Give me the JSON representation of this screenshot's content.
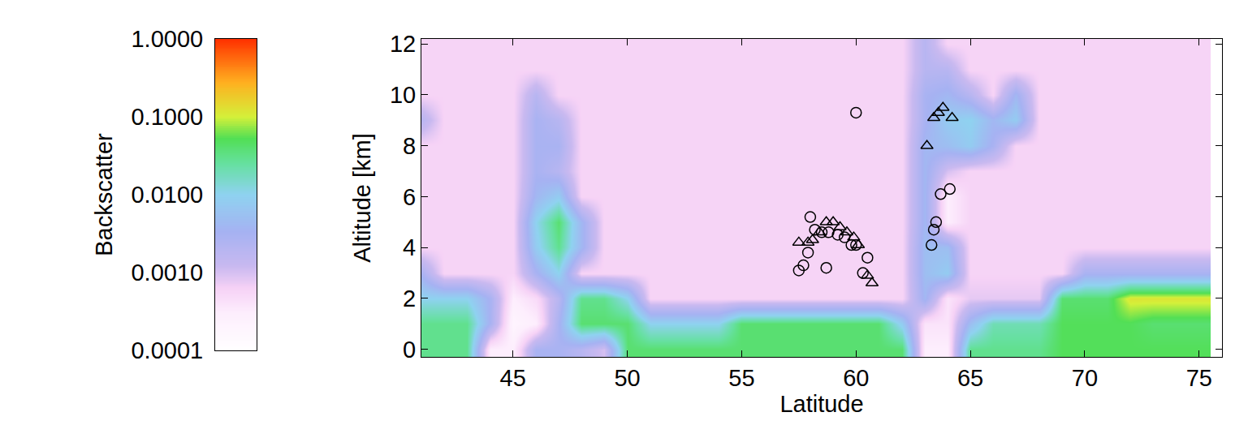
{
  "chart_data": {
    "type": "heatmap",
    "x_label": "Latitude",
    "y_label": "Altitude [km]",
    "xlim": [
      41,
      76
    ],
    "xticks": [
      45,
      50,
      55,
      60,
      65,
      70,
      75
    ],
    "ylim": [
      -0.3,
      12.2
    ],
    "yticks": [
      0,
      2,
      4,
      6,
      8,
      10,
      12
    ],
    "grid": false,
    "x": [
      41,
      42,
      43,
      44,
      45,
      46,
      47,
      48,
      49,
      50,
      51,
      52,
      53,
      54,
      55,
      56,
      57,
      58,
      59,
      60,
      61,
      62,
      63,
      64,
      65,
      66,
      67,
      68,
      69,
      70,
      71,
      72,
      73,
      74,
      75
    ],
    "y": [
      0,
      1,
      2,
      3,
      4,
      5,
      6,
      7,
      8,
      9,
      10,
      11,
      12
    ],
    "cells": [
      [
        0.03,
        0.03,
        0.03,
        0.0003,
        0.0003,
        0.003,
        0.003,
        0.002,
        0.001,
        0.04,
        0.04,
        0.04,
        0.04,
        0.04,
        0.04,
        0.04,
        0.04,
        0.04,
        0.04,
        0.04,
        0.04,
        0.04,
        0.0003,
        0.0003,
        0.03,
        0.03,
        0.03,
        0.03,
        0.05,
        0.05,
        0.05,
        0.05,
        0.05,
        0.05,
        0.05
      ],
      [
        0.03,
        0.03,
        0.03,
        0.003,
        0.0002,
        0.0003,
        0.003,
        0.04,
        0.04,
        0.04,
        0.01,
        0.01,
        0.01,
        0.01,
        0.04,
        0.04,
        0.04,
        0.04,
        0.04,
        0.04,
        0.04,
        0.008,
        0.0004,
        0.0004,
        0.005,
        0.02,
        0.02,
        0.02,
        0.05,
        0.05,
        0.05,
        0.05,
        0.04,
        0.04,
        0.04
      ],
      [
        0.01,
        0.01,
        0.01,
        0.003,
        0.0003,
        0.0005,
        0.002,
        0.03,
        0.03,
        0.01,
        0.0006,
        0.0006,
        0.0006,
        0.0006,
        0.0006,
        0.0006,
        0.0006,
        0.0006,
        0.0006,
        0.0006,
        0.0006,
        0.0006,
        0.004,
        0.0004,
        0.0008,
        0.0008,
        0.0008,
        0.0008,
        0.04,
        0.04,
        0.04,
        0.12,
        0.12,
        0.12,
        0.12
      ],
      [
        0.003,
        0.0006,
        0.0006,
        0.0006,
        0.0006,
        0.003,
        0.01,
        0.0006,
        0.0006,
        0.0006,
        0.0006,
        0.0006,
        0.0006,
        0.0006,
        0.0006,
        0.0006,
        0.0006,
        0.0006,
        0.0006,
        0.0006,
        0.0006,
        0.0006,
        0.005,
        0.008,
        0.0006,
        0.0006,
        0.0006,
        0.0006,
        0.0006,
        0.003,
        0.003,
        0.003,
        0.003,
        0.003,
        0.003
      ],
      [
        0.0006,
        0.0006,
        0.0006,
        0.0006,
        0.0006,
        0.008,
        0.03,
        0.004,
        0.0006,
        0.0006,
        0.0006,
        0.0006,
        0.0006,
        0.0006,
        0.0006,
        0.0006,
        0.0006,
        0.0006,
        0.0006,
        0.0006,
        0.0006,
        0.0006,
        0.005,
        0.005,
        0.0006,
        0.0006,
        0.0006,
        0.0006,
        0.0006,
        0.0006,
        0.0006,
        0.0006,
        0.0006,
        0.0006,
        0.0006
      ],
      [
        0.0006,
        0.0006,
        0.0006,
        0.0006,
        0.0006,
        0.01,
        0.04,
        0.004,
        0.0006,
        0.0006,
        0.0006,
        0.0006,
        0.0006,
        0.0006,
        0.0006,
        0.0006,
        0.0006,
        0.0006,
        0.0006,
        0.0006,
        0.0006,
        0.0006,
        0.004,
        0.0003,
        0.0006,
        0.0006,
        0.0006,
        0.0006,
        0.0006,
        0.0006,
        0.0006,
        0.0006,
        0.0006,
        0.0006,
        0.0006
      ],
      [
        0.0006,
        0.0006,
        0.0006,
        0.0006,
        0.0006,
        0.004,
        0.008,
        0.0006,
        0.0006,
        0.0006,
        0.0006,
        0.0006,
        0.0006,
        0.0006,
        0.0006,
        0.0006,
        0.0006,
        0.0006,
        0.0006,
        0.0006,
        0.0006,
        0.0006,
        0.004,
        0.0003,
        0.0006,
        0.0006,
        0.0006,
        0.0006,
        0.0006,
        0.0006,
        0.0006,
        0.0006,
        0.0006,
        0.0006,
        0.0006
      ],
      [
        0.0006,
        0.0006,
        0.0006,
        0.0006,
        0.0006,
        0.003,
        0.002,
        0.0006,
        0.0006,
        0.0006,
        0.0006,
        0.0006,
        0.0006,
        0.0006,
        0.0006,
        0.0006,
        0.0006,
        0.0006,
        0.0006,
        0.0006,
        0.0006,
        0.0006,
        0.004,
        0.001,
        0.0006,
        0.0006,
        0.0006,
        0.0006,
        0.0006,
        0.0006,
        0.0006,
        0.0006,
        0.0006,
        0.0006,
        0.0006
      ],
      [
        0.0006,
        0.0006,
        0.0006,
        0.0006,
        0.0006,
        0.003,
        0.003,
        0.0006,
        0.0006,
        0.0006,
        0.0006,
        0.0006,
        0.0006,
        0.0006,
        0.0006,
        0.0006,
        0.0006,
        0.0006,
        0.0006,
        0.0006,
        0.0006,
        0.0006,
        0.004,
        0.005,
        0.008,
        0.003,
        0.0006,
        0.0006,
        0.0006,
        0.0006,
        0.0006,
        0.0006,
        0.0006,
        0.0006,
        0.0006
      ],
      [
        0.002,
        0.0006,
        0.0006,
        0.0006,
        0.0006,
        0.003,
        0.002,
        0.0006,
        0.0006,
        0.0006,
        0.0006,
        0.0006,
        0.0006,
        0.0006,
        0.0006,
        0.0006,
        0.0006,
        0.0006,
        0.0006,
        0.0006,
        0.0006,
        0.0006,
        0.003,
        0.008,
        0.01,
        0.004,
        0.008,
        0.0006,
        0.0006,
        0.0006,
        0.0006,
        0.0006,
        0.0006,
        0.0006,
        0.0006
      ],
      [
        0.0006,
        0.0006,
        0.0006,
        0.0006,
        0.0006,
        0.002,
        0.0006,
        0.0006,
        0.0006,
        0.0006,
        0.0006,
        0.0006,
        0.0006,
        0.0006,
        0.0006,
        0.0006,
        0.0006,
        0.0006,
        0.0006,
        0.0006,
        0.0006,
        0.0006,
        0.003,
        0.004,
        0.002,
        0.0006,
        0.004,
        0.0006,
        0.0006,
        0.0006,
        0.0006,
        0.0006,
        0.0006,
        0.0006,
        0.0006
      ],
      [
        0.0006,
        0.0006,
        0.0006,
        0.0006,
        0.0006,
        0.0006,
        0.0006,
        0.0006,
        0.0006,
        0.0006,
        0.0006,
        0.0006,
        0.0006,
        0.0006,
        0.0006,
        0.0006,
        0.0006,
        0.0006,
        0.0006,
        0.0006,
        0.0006,
        0.0006,
        0.002,
        0.002,
        0.0006,
        0.0006,
        0.0006,
        0.0006,
        0.0006,
        0.0006,
        0.0006,
        0.0006,
        0.0006,
        0.0006,
        0.0006
      ],
      [
        0.0006,
        0.0006,
        0.0006,
        0.0006,
        0.0006,
        0.0006,
        0.0006,
        0.0006,
        0.0006,
        0.0006,
        0.0006,
        0.0006,
        0.0006,
        0.0006,
        0.0006,
        0.0006,
        0.0006,
        0.0006,
        0.0006,
        0.0006,
        0.0006,
        0.0006,
        0.002,
        0.0006,
        0.0006,
        0.0006,
        0.0006,
        0.0006,
        0.0006,
        0.0006,
        0.0006,
        0.0006,
        0.0006,
        0.0006,
        0.0006
      ]
    ],
    "colorbar": {
      "title": "Backscatter",
      "log": true,
      "range": [
        0.0001,
        1
      ],
      "ticks": [
        {
          "value": 1,
          "label": "1.0000"
        },
        {
          "value": 0.1,
          "label": "0.1000"
        },
        {
          "value": 0.01,
          "label": "0.0100"
        },
        {
          "value": 0.001,
          "label": "0.0010"
        },
        {
          "value": 0.0001,
          "label": "0.0001"
        }
      ]
    },
    "series": [
      {
        "type": "scatter",
        "marker": "circle",
        "color": "#000000",
        "x": [
          60.0,
          58.0,
          58.2,
          58.5,
          58.8,
          59.2,
          59.5,
          59.8,
          60.0,
          57.9,
          57.7,
          57.5,
          58.7,
          60.5,
          60.3,
          63.7,
          64.1,
          63.5,
          63.4,
          63.3
        ],
        "y": [
          9.3,
          5.2,
          4.7,
          4.6,
          4.6,
          4.5,
          4.4,
          4.1,
          4.1,
          3.8,
          3.3,
          3.1,
          3.2,
          3.6,
          3.0,
          6.1,
          6.3,
          5.0,
          4.7,
          4.1
        ]
      },
      {
        "type": "scatter",
        "marker": "triangle",
        "color": "#000000",
        "x": [
          57.5,
          57.9,
          58.1,
          58.4,
          58.7,
          59.0,
          59.3,
          59.6,
          59.9,
          60.1,
          60.5,
          60.7,
          63.1,
          63.4,
          63.6,
          63.8,
          64.2
        ],
        "y": [
          4.2,
          4.2,
          4.3,
          4.6,
          5.0,
          5.0,
          4.8,
          4.6,
          4.4,
          4.1,
          2.9,
          2.6,
          8.0,
          9.1,
          9.3,
          9.5,
          9.1
        ]
      }
    ]
  }
}
